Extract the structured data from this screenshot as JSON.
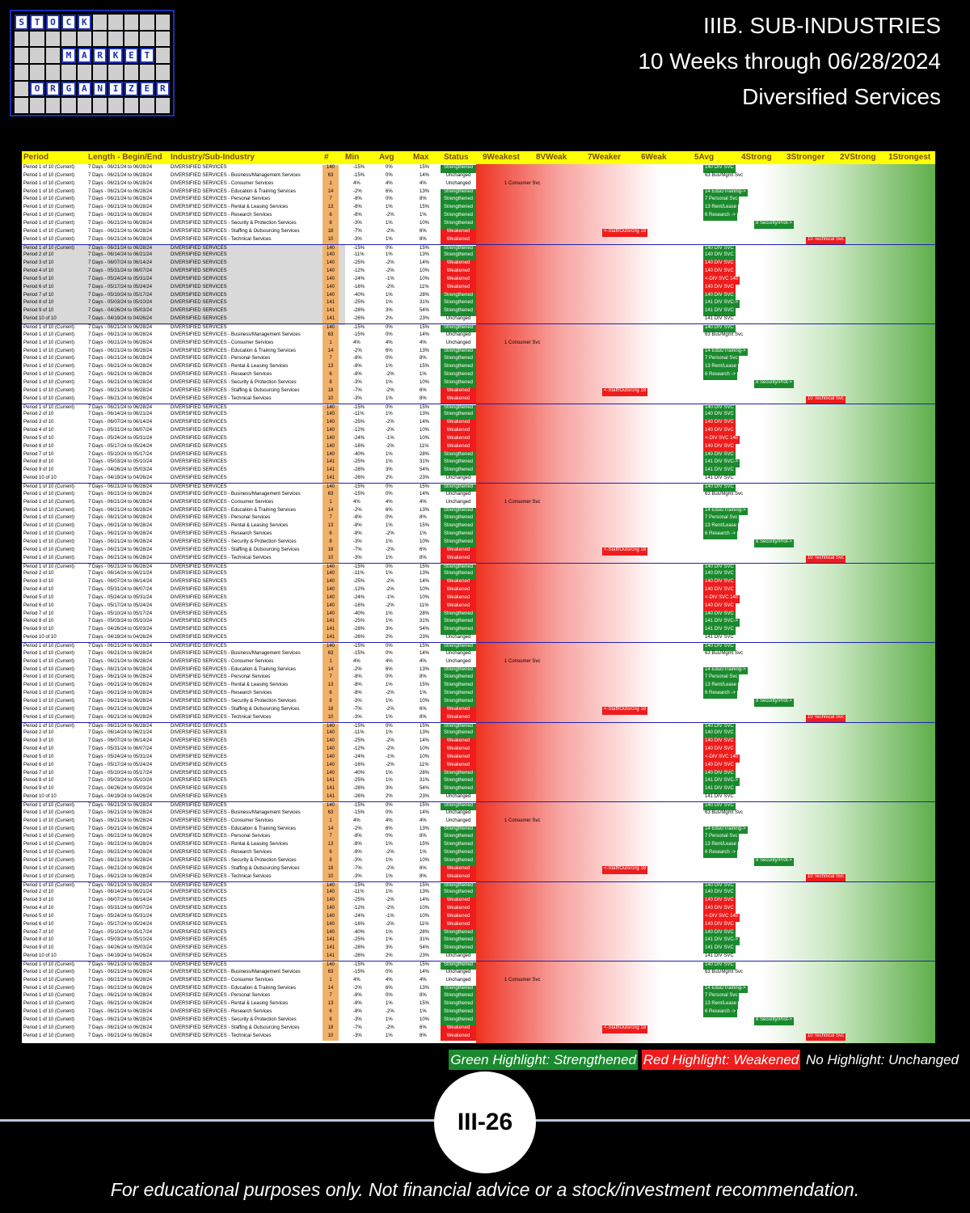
{
  "logo": {
    "row1": [
      "S",
      "T",
      "O",
      "C",
      "K"
    ],
    "row2": [
      "M",
      "A",
      "R",
      "K",
      "E",
      "T"
    ],
    "row3": [
      "O",
      "R",
      "G",
      "A",
      "N",
      "I",
      "Z",
      "E",
      "R"
    ]
  },
  "titles": {
    "line1": "IIIB. SUB-INDUSTRIES",
    "line2": "10 Weeks through 06/28/2024",
    "line3": "Diversified Services"
  },
  "table": {
    "headers": [
      "Period",
      "Length - Begin/End",
      "Industry/Sub-Industry",
      "#",
      "Min",
      "Avg",
      "Max",
      "Status",
      "9Weakest",
      "8VWeak",
      "7Weaker",
      "6Weak",
      "5Avg",
      "4Strong",
      "3Stronger",
      "2VStrong",
      "1Strongest"
    ],
    "rows": [
      {
        "p": "Period 1 of 10 (Current)",
        "l": "7 Days - 06/21/24 to 06/28/24",
        "i": "DIVERSIFIED SERVICES",
        "n": "140",
        "mn": "-15%",
        "av": "0%",
        "mx": "15%",
        "st": "Strengthened",
        "tag": "140 DIV SVC"
      },
      {
        "p": "Period 1 of 10 (Current)",
        "l": "7 Days - 06/21/24 to 06/28/24",
        "i": "DIVERSIFIED SERVICES - Business/Management Services",
        "n": "63",
        "mn": "-15%",
        "av": "0%",
        "mx": "14%",
        "st": "Unchanged",
        "tag": "63 Bus/Mgmt Svc"
      },
      {
        "p": "Period 1 of 10 (Current)",
        "l": "7 Days - 06/21/24 to 06/28/24",
        "i": "DIVERSIFIED SERVICES - Consumer Services",
        "n": "1",
        "mn": "4%",
        "av": "4%",
        "mx": "4%",
        "st": "Unchanged",
        "tag": "1 Consumer Svc"
      },
      {
        "p": "Period 1 of 10 (Current)",
        "l": "7 Days - 06/21/24 to 06/28/24",
        "i": "DIVERSIFIED SERVICES - Education & Training Services",
        "n": "14",
        "mn": "-2%",
        "av": "6%",
        "mx": "13%",
        "st": "Strengthened",
        "tag": "14 Educ/Training->"
      },
      {
        "p": "Period 1 of 10 (Current)",
        "l": "7 Days - 06/21/24 to 06/28/24",
        "i": "DIVERSIFIED SERVICES - Personal Services",
        "n": "7",
        "mn": "-8%",
        "av": "0%",
        "mx": "8%",
        "st": "Strengthened",
        "tag": "7 Personal Svc"
      },
      {
        "p": "Period 1 of 10 (Current)",
        "l": "7 Days - 06/21/24 to 06/28/24",
        "i": "DIVERSIFIED SERVICES - Rental & Leasing Services",
        "n": "13",
        "mn": "-8%",
        "av": "1%",
        "mx": "15%",
        "st": "Strengthened",
        "tag": "13 Rent/Lease"
      },
      {
        "p": "Period 1 of 10 (Current)",
        "l": "7 Days - 06/21/24 to 06/28/24",
        "i": "DIVERSIFIED SERVICES - Research Services",
        "n": "6",
        "mn": "-8%",
        "av": "-2%",
        "mx": "1%",
        "st": "Strengthened",
        "tag": "6 Research ->"
      },
      {
        "p": "Period 1 of 10 (Current)",
        "l": "7 Days - 06/21/24 to 06/28/24",
        "i": "DIVERSIFIED SERVICES - Security & Protection Services",
        "n": "8",
        "mn": "-3%",
        "av": "1%",
        "mx": "10%",
        "st": "Strengthened",
        "tag": "8 Security/Prot->"
      },
      {
        "p": "Period 1 of 10 (Current)",
        "l": "7 Days - 06/21/24 to 06/28/24",
        "i": "DIVERSIFIED SERVICES - Staffing & Outsourcing Services",
        "n": "18",
        "mn": "-7%",
        "av": "-2%",
        "mx": "6%",
        "st": "Weakened",
        "tag": "<-Staff/Outsrcng 18"
      },
      {
        "p": "Period 1 of 10 (Current)",
        "l": "7 Days - 06/21/24 to 06/28/24",
        "i": "DIVERSIFIED SERVICES - Technical Services",
        "n": "10",
        "mn": "-3%",
        "av": "1%",
        "mx": "8%",
        "st": "Weakened",
        "tag": "10 Technical Svc"
      },
      {
        "p": "Period 1 of 10 (Current)",
        "l": "7 Days - 06/21/24 to 06/28/24",
        "i": "DIVERSIFIED SERVICES",
        "n": "140",
        "mn": "-15%",
        "av": "0%",
        "mx": "15%",
        "st": "Strengthened",
        "tag": "140 DIV SVC"
      },
      {
        "p": "Period 2 of 10",
        "l": "7 Days - 06/14/24 to 06/21/24",
        "i": "DIVERSIFIED SERVICES",
        "n": "140",
        "mn": "-11%",
        "av": "1%",
        "mx": "13%",
        "st": "Strengthened",
        "tag": "140 DIV SVC"
      },
      {
        "p": "Period 3 of 10",
        "l": "7 Days - 06/07/24 to 06/14/24",
        "i": "DIVERSIFIED SERVICES",
        "n": "140",
        "mn": "-25%",
        "av": "-2%",
        "mx": "14%",
        "st": "Weakened",
        "tag": "140 DIV SVC"
      },
      {
        "p": "Period 4 of 10",
        "l": "7 Days - 05/31/24 to 06/07/24",
        "i": "DIVERSIFIED SERVICES",
        "n": "140",
        "mn": "-12%",
        "av": "-2%",
        "mx": "10%",
        "st": "Weakened",
        "tag": "140 DIV SVC"
      },
      {
        "p": "Period 5 of 10",
        "l": "7 Days - 05/24/24 to 05/31/24",
        "i": "DIVERSIFIED SERVICES",
        "n": "140",
        "mn": "-24%",
        "av": "-1%",
        "mx": "10%",
        "st": "Weakened",
        "tag": "<-DIV SVC 140"
      },
      {
        "p": "Period 6 of 10",
        "l": "7 Days - 05/17/24 to 05/24/24",
        "i": "DIVERSIFIED SERVICES",
        "n": "140",
        "mn": "-16%",
        "av": "-2%",
        "mx": "11%",
        "st": "Weakened",
        "tag": "140 DIV SVC"
      },
      {
        "p": "Period 7 of 10",
        "l": "7 Days - 05/10/24 to 05/17/24",
        "i": "DIVERSIFIED SERVICES",
        "n": "140",
        "mn": "-40%",
        "av": "1%",
        "mx": "28%",
        "st": "Strengthened",
        "tag": "140 DIV SVC"
      },
      {
        "p": "Period 8 of 10",
        "l": "7 Days - 05/03/24 to 05/10/24",
        "i": "DIVERSIFIED SERVICES",
        "n": "141",
        "mn": "-25%",
        "av": "1%",
        "mx": "31%",
        "st": "Strengthened",
        "tag": "141 DIV SVC->"
      },
      {
        "p": "Period 9 of 10",
        "l": "7 Days - 04/26/24 to 05/03/24",
        "i": "DIVERSIFIED SERVICES",
        "n": "141",
        "mn": "-28%",
        "av": "3%",
        "mx": "54%",
        "st": "Strengthened",
        "tag": "141 DIV SVC"
      },
      {
        "p": "Period 10 of 10",
        "l": "7 Days - 04/19/24 to 04/26/24",
        "i": "DIVERSIFIED SERVICES",
        "n": "141",
        "mn": "-26%",
        "av": "2%",
        "mx": "23%",
        "st": "Unchanged",
        "tag": "141 DIV SVC"
      }
    ]
  },
  "legend": {
    "green": "Green Highlight: Strengthened",
    "red": "Red Highlight: Weakened",
    "none": "No Highlight: Unchanged"
  },
  "page_number": "III-26",
  "disclaimer": "For educational purposes only. Not financial advice or a stock/investment recommendation.",
  "colors": {
    "strengthened": "#1b8a2e",
    "weakened": "#ee1c1c",
    "header": "#ffff00"
  }
}
